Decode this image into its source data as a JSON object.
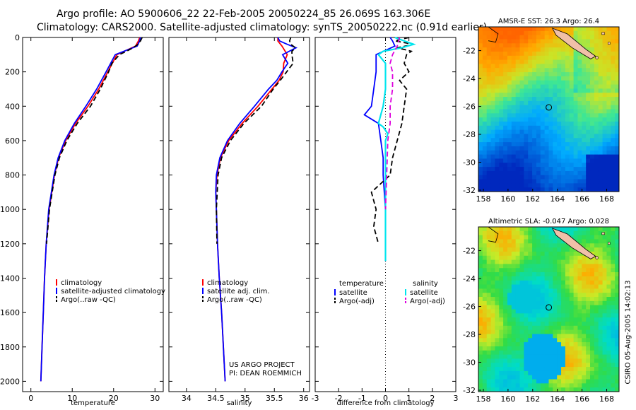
{
  "header": {
    "title_line1": "Argo profile: AO 5900606_22 22-Feb-2005 20050224_85 26.069S 163.306E",
    "title_line2": "Climatology: CARS2000. Satellite-adjusted climatology: synTS_20050222.nc (0.91d earlier)"
  },
  "colors": {
    "climatology": "#ff0000",
    "satellite": "#0000ff",
    "argo": "#000000",
    "satellite_salinity": "#00e5ee",
    "argo_adj_salinity": "#dd00dd"
  },
  "chart_data": [
    {
      "type": "line",
      "name": "temperature-profile",
      "xlabel": "temperature",
      "ylabel": "",
      "xlim": [
        -2,
        32
      ],
      "ylim": [
        2060,
        0
      ],
      "xticks": [
        "0",
        "10",
        "20",
        "30"
      ],
      "yticks": [
        "0",
        "200",
        "400",
        "600",
        "800",
        "1000",
        "1200",
        "1400",
        "1600",
        "1800",
        "2000"
      ],
      "legend": [
        "climatology",
        "satellite-adjusted climatology",
        "Argo(..raw -QC)"
      ],
      "series": [
        {
          "name": "climatology",
          "depth": [
            0,
            20,
            50,
            100,
            200,
            300,
            400,
            500,
            600,
            700,
            800,
            1000,
            1200,
            1400,
            1600,
            1800,
            2000
          ],
          "values": [
            26.3,
            26.0,
            25.3,
            20.8,
            18.6,
            16.4,
            13.8,
            10.8,
            8.4,
            6.7,
            5.7,
            4.4,
            3.7,
            3.3,
            3.0,
            2.7,
            2.4
          ]
        },
        {
          "name": "satellite-adjusted climatology",
          "depth": [
            0,
            20,
            50,
            100,
            200,
            300,
            400,
            500,
            600,
            700,
            800,
            1000,
            1200,
            1400,
            1600,
            1800,
            2000
          ],
          "values": [
            26.5,
            26.3,
            25.7,
            20.4,
            18.2,
            15.9,
            13.3,
            10.5,
            8.2,
            6.6,
            5.6,
            4.3,
            3.7,
            3.3,
            3.0,
            2.7,
            2.4
          ]
        },
        {
          "name": "Argo(..raw -QC)",
          "depth": [
            0,
            10,
            20,
            40,
            60,
            80,
            100,
            150,
            200,
            300,
            400,
            500,
            600,
            700,
            800,
            1000,
            1200
          ],
          "values": [
            26.9,
            26.7,
            26.5,
            25.9,
            24.7,
            23.1,
            21.4,
            19.6,
            18.8,
            16.8,
            14.4,
            11.2,
            8.7,
            6.9,
            5.8,
            4.5,
            3.8
          ]
        }
      ]
    },
    {
      "type": "line",
      "name": "salinity-profile",
      "xlabel": "salinity",
      "xlim": [
        33.7,
        36.1
      ],
      "ylim": [
        2060,
        0
      ],
      "xticks": [
        "34",
        "34.5",
        "35",
        "35.5",
        "36"
      ],
      "legend": [
        "climatology",
        "satellite adj. clim.",
        "Argo(..raw -QC)"
      ],
      "annotation": [
        "US ARGO PROJECT",
        "PI: DEAN ROEMMICH"
      ],
      "series": [
        {
          "name": "climatology",
          "depth": [
            0,
            20,
            50,
            100,
            150,
            200,
            250,
            300,
            400,
            500,
            600,
            700,
            800,
            900,
            1000,
            1200,
            1400,
            1600,
            1800,
            2000
          ],
          "values": [
            35.56,
            35.56,
            35.63,
            35.72,
            35.66,
            35.65,
            35.58,
            35.46,
            35.22,
            34.95,
            34.72,
            34.58,
            34.52,
            34.5,
            34.51,
            34.53,
            34.56,
            34.6,
            34.63,
            34.66
          ]
        },
        {
          "name": "satellite adj. clim.",
          "depth": [
            0,
            20,
            40,
            60,
            100,
            150,
            200,
            250,
            300,
            400,
            500,
            600,
            700,
            800,
            900,
            1000,
            1200,
            1400,
            1600,
            1800,
            2000
          ],
          "values": [
            35.56,
            35.59,
            35.72,
            35.87,
            35.64,
            35.73,
            35.63,
            35.54,
            35.4,
            35.16,
            34.91,
            34.7,
            34.57,
            34.51,
            34.5,
            34.51,
            34.53,
            34.56,
            34.6,
            34.63,
            34.66
          ]
        },
        {
          "name": "Argo(..raw -QC)",
          "depth": [
            0,
            20,
            40,
            60,
            80,
            100,
            150,
            200,
            250,
            300,
            400,
            500,
            600,
            700,
            800,
            1000,
            1200
          ],
          "values": [
            35.78,
            35.76,
            35.78,
            35.86,
            35.8,
            35.8,
            35.82,
            35.71,
            35.6,
            35.48,
            35.28,
            34.98,
            34.75,
            34.6,
            34.54,
            34.51,
            34.52
          ]
        }
      ]
    },
    {
      "type": "line",
      "name": "difference-profile",
      "xlabel": "difference from climatology",
      "xlim": [
        -3,
        3
      ],
      "ylim": [
        2060,
        0
      ],
      "xticks": [
        "-3",
        "-2",
        "-1",
        "0",
        "1",
        "2",
        "3"
      ],
      "legend_temperature_header": "temperature",
      "legend_salinity_header": "salinity",
      "legend": [
        "satellite",
        "Argo(-adj)",
        "satellite",
        "Argo(-adj)"
      ],
      "series": [
        {
          "name": "temperature satellite",
          "depth": [
            0,
            20,
            50,
            100,
            200,
            300,
            400,
            450,
            500,
            600,
            700,
            800,
            900,
            1000,
            1200,
            1300
          ],
          "values": [
            0.2,
            0.3,
            0.4,
            -0.4,
            -0.4,
            -0.5,
            -0.6,
            -0.9,
            -0.3,
            -0.2,
            -0.1,
            -0.1,
            -0.05,
            0,
            0,
            0
          ]
        },
        {
          "name": "temperature Argo(-adj)",
          "depth": [
            0,
            20,
            40,
            60,
            80,
            100,
            150,
            200,
            250,
            300,
            400,
            500,
            600,
            700,
            800,
            900,
            1000,
            1100,
            1200
          ],
          "values": [
            1.0,
            0.4,
            1.2,
            0.5,
            1.1,
            0.9,
            0.8,
            1.0,
            0.6,
            0.9,
            0.8,
            0.7,
            0.5,
            0.3,
            0.2,
            -0.6,
            -0.4,
            -0.5,
            -0.3
          ]
        },
        {
          "name": "salinity satellite",
          "depth": [
            0,
            20,
            40,
            60,
            80,
            100,
            150,
            200,
            250,
            300,
            400,
            500,
            520,
            560,
            600,
            700,
            800,
            1000,
            1300
          ],
          "values": [
            0.4,
            0.8,
            1.2,
            0.7,
            -0.1,
            -0.3,
            0.0,
            0.0,
            0.0,
            0.0,
            -0.1,
            -0.3,
            -0.1,
            0.1,
            0.0,
            0.0,
            0.0,
            0.0,
            0.0
          ]
        },
        {
          "name": "salinity Argo(-adj)",
          "depth": [
            0,
            50,
            100,
            150,
            200,
            300,
            400,
            500,
            600,
            800,
            1000
          ],
          "values": [
            0.6,
            0.5,
            0.3,
            0.2,
            0.3,
            0.3,
            0.2,
            0.2,
            0.1,
            0.05,
            0.0
          ]
        }
      ]
    },
    {
      "type": "heatmap",
      "name": "sst-map",
      "title": "AMSR-E SST: 26.3 Argo: 26.4",
      "xticks": [
        "158",
        "160",
        "162",
        "164",
        "166",
        "168"
      ],
      "yticks": [
        "-22",
        "-24",
        "-26",
        "-28",
        "-30",
        "-32"
      ],
      "xlim": [
        157.6,
        169
      ],
      "ylim": [
        -32.1,
        -20.3
      ]
    },
    {
      "type": "heatmap",
      "name": "sla-map",
      "title": "Altimetric SLA: -0.047 Argo: 0.028",
      "xticks": [
        "158",
        "160",
        "162",
        "164",
        "166",
        "168"
      ],
      "yticks": [
        "-22",
        "-24",
        "-26",
        "-28",
        "-30",
        "-32"
      ],
      "xlim": [
        157.6,
        169
      ],
      "ylim": [
        -32.1,
        -20.3
      ]
    }
  ],
  "sidebar": {
    "stamp": "CSIRO 05-Aug-2005 14:02:13"
  }
}
